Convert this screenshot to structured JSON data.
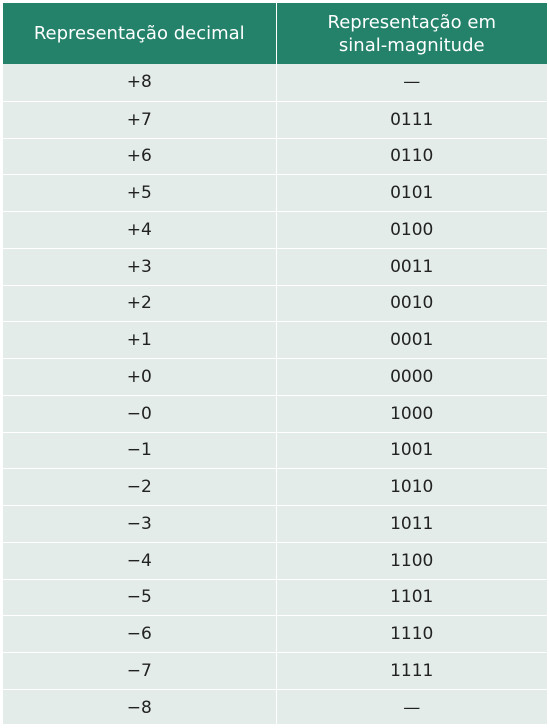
{
  "table": {
    "headers": [
      "Representação decimal",
      "Representação em sinal-magnitude"
    ],
    "header_line1_col2": "Representação em",
    "header_line2_col2": "sinal-magnitude",
    "rows": [
      {
        "decimal": "+8",
        "sinal_magnitude": "—"
      },
      {
        "decimal": "+7",
        "sinal_magnitude": "0111"
      },
      {
        "decimal": "+6",
        "sinal_magnitude": "0110"
      },
      {
        "decimal": "+5",
        "sinal_magnitude": "0101"
      },
      {
        "decimal": "+4",
        "sinal_magnitude": "0100"
      },
      {
        "decimal": "+3",
        "sinal_magnitude": "0011"
      },
      {
        "decimal": "+2",
        "sinal_magnitude": "0010"
      },
      {
        "decimal": "+1",
        "sinal_magnitude": "0001"
      },
      {
        "decimal": "+0",
        "sinal_magnitude": "0000"
      },
      {
        "decimal": "−0",
        "sinal_magnitude": "1000"
      },
      {
        "decimal": "−1",
        "sinal_magnitude": "1001"
      },
      {
        "decimal": "−2",
        "sinal_magnitude": "1010"
      },
      {
        "decimal": "−3",
        "sinal_magnitude": "1011"
      },
      {
        "decimal": "−4",
        "sinal_magnitude": "1100"
      },
      {
        "decimal": "−5",
        "sinal_magnitude": "1101"
      },
      {
        "decimal": "−6",
        "sinal_magnitude": "1110"
      },
      {
        "decimal": "−7",
        "sinal_magnitude": "1111"
      },
      {
        "decimal": "−8",
        "sinal_magnitude": "—"
      }
    ]
  },
  "colors": {
    "header_bg": "#24826b",
    "row_bg": "#e3ece8",
    "divider": "#ffffff"
  }
}
